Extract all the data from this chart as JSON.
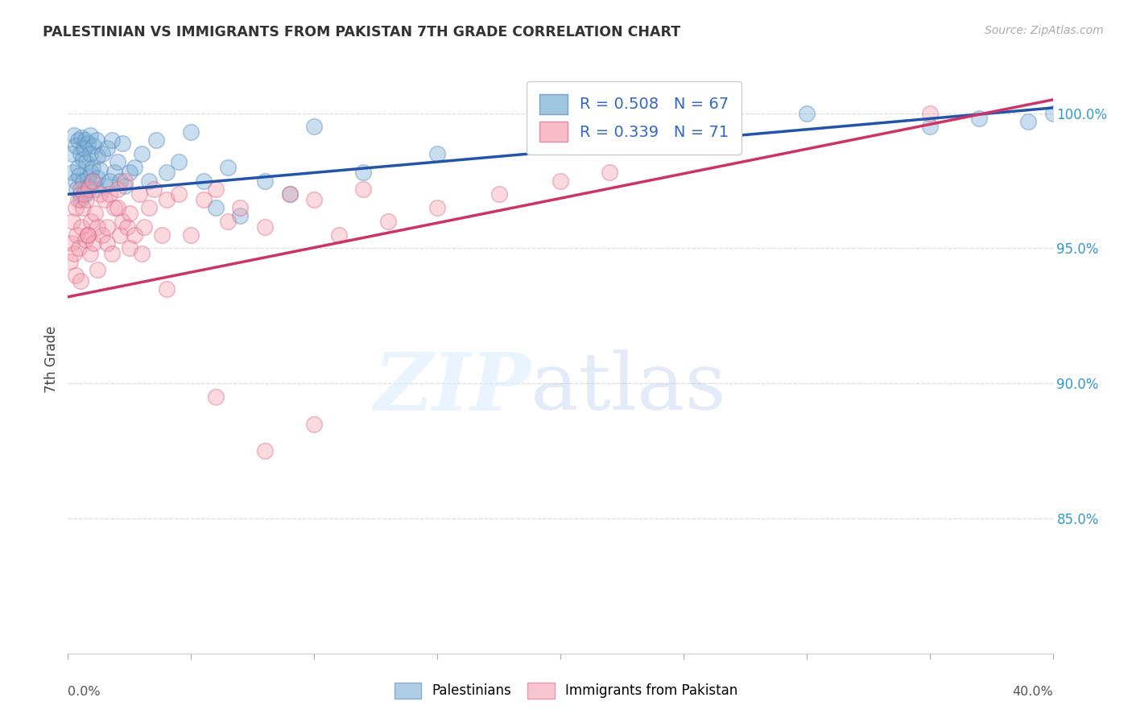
{
  "title": "PALESTINIAN VS IMMIGRANTS FROM PAKISTAN 7TH GRADE CORRELATION CHART",
  "source": "Source: ZipAtlas.com",
  "ylabel": "7th Grade",
  "r1": 0.508,
  "n1": 67,
  "r2": 0.339,
  "n2": 71,
  "blue_color": "#7aaed6",
  "pink_color": "#f4a0b0",
  "blue_line_color": "#2255aa",
  "pink_line_color": "#cc3366",
  "blue_edge": "#5588bb",
  "pink_edge": "#dd6688",
  "legend_label1": "Palestinians",
  "legend_label2": "Immigrants from Pakistan",
  "blue_scatter_x": [
    0.15,
    0.2,
    0.25,
    0.3,
    0.3,
    0.35,
    0.4,
    0.4,
    0.45,
    0.5,
    0.5,
    0.55,
    0.6,
    0.6,
    0.65,
    0.7,
    0.7,
    0.75,
    0.8,
    0.8,
    0.85,
    0.9,
    0.9,
    0.95,
    1.0,
    1.0,
    1.05,
    1.1,
    1.15,
    1.2,
    1.2,
    1.3,
    1.4,
    1.5,
    1.6,
    1.7,
    1.8,
    1.9,
    2.0,
    2.1,
    2.2,
    2.3,
    2.5,
    2.7,
    3.0,
    3.3,
    3.6,
    4.0,
    4.5,
    5.0,
    5.5,
    6.0,
    6.5,
    7.0,
    8.0,
    9.0,
    10.0,
    12.0,
    15.0,
    20.0,
    25.0,
    30.0,
    35.0,
    37.0,
    39.0,
    40.0,
    0.5
  ],
  "blue_scatter_y": [
    98.5,
    97.8,
    99.2,
    97.5,
    98.8,
    97.2,
    98.0,
    99.0,
    97.7,
    98.5,
    97.0,
    99.1,
    98.3,
    97.5,
    98.7,
    97.0,
    99.0,
    98.2,
    97.6,
    98.9,
    97.3,
    98.5,
    99.2,
    97.8,
    98.0,
    97.5,
    98.8,
    97.2,
    99.0,
    98.4,
    97.6,
    97.9,
    98.5,
    97.3,
    98.7,
    97.5,
    99.0,
    97.8,
    98.2,
    97.5,
    98.9,
    97.3,
    97.8,
    98.0,
    98.5,
    97.5,
    99.0,
    97.8,
    98.2,
    99.3,
    97.5,
    96.5,
    98.0,
    96.2,
    97.5,
    97.0,
    99.5,
    97.8,
    98.5,
    99.0,
    99.5,
    100.0,
    99.5,
    99.8,
    99.7,
    100.0,
    96.8
  ],
  "pink_scatter_x": [
    0.1,
    0.15,
    0.2,
    0.25,
    0.3,
    0.35,
    0.4,
    0.45,
    0.5,
    0.55,
    0.6,
    0.65,
    0.7,
    0.75,
    0.8,
    0.85,
    0.9,
    0.95,
    1.0,
    1.05,
    1.1,
    1.2,
    1.3,
    1.4,
    1.5,
    1.6,
    1.7,
    1.8,
    1.9,
    2.0,
    2.1,
    2.2,
    2.3,
    2.4,
    2.5,
    2.7,
    2.9,
    3.1,
    3.3,
    3.5,
    3.8,
    4.0,
    4.5,
    5.0,
    5.5,
    6.0,
    6.5,
    7.0,
    8.0,
    9.0,
    10.0,
    11.0,
    12.0,
    13.0,
    15.0,
    17.5,
    20.0,
    22.0,
    35.0,
    0.3,
    0.5,
    0.8,
    1.2,
    1.6,
    2.0,
    2.5,
    3.0,
    4.0,
    6.0,
    8.0,
    10.0
  ],
  "pink_scatter_y": [
    94.5,
    95.2,
    96.0,
    94.8,
    96.5,
    95.5,
    96.8,
    95.0,
    97.2,
    95.8,
    96.5,
    97.0,
    95.3,
    96.8,
    95.5,
    97.2,
    94.8,
    96.0,
    97.5,
    95.2,
    96.3,
    95.8,
    97.0,
    95.5,
    96.8,
    95.2,
    97.0,
    94.8,
    96.5,
    97.2,
    95.5,
    96.0,
    97.5,
    95.8,
    96.3,
    95.5,
    97.0,
    95.8,
    96.5,
    97.2,
    95.5,
    96.8,
    97.0,
    95.5,
    96.8,
    97.2,
    96.0,
    96.5,
    95.8,
    97.0,
    96.8,
    95.5,
    97.2,
    96.0,
    96.5,
    97.0,
    97.5,
    97.8,
    100.0,
    94.0,
    93.8,
    95.5,
    94.2,
    95.8,
    96.5,
    95.0,
    94.8,
    93.5,
    89.5,
    87.5,
    88.5
  ]
}
